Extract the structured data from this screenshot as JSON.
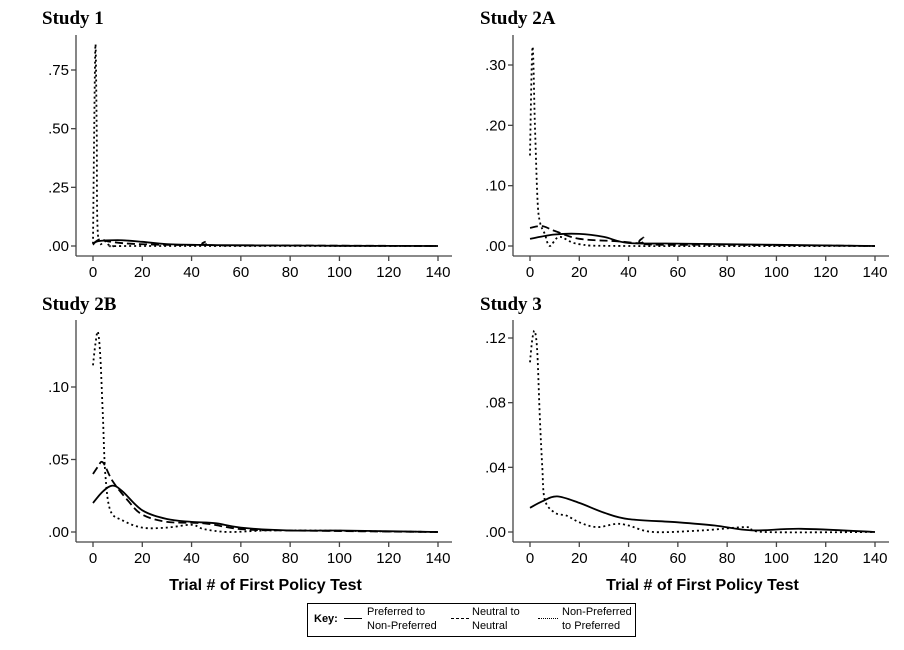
{
  "chart_data": [
    {
      "type": "line",
      "title": "Study 1",
      "xlabel": "",
      "xlim": [
        0,
        140
      ],
      "ylim": [
        0,
        0.88
      ],
      "xticks": [
        0,
        20,
        40,
        60,
        80,
        100,
        120,
        140
      ],
      "xtick_labels": [
        "0",
        "20",
        "40",
        "60",
        "80",
        "100",
        "120",
        "140"
      ],
      "yticks": [
        0,
        0.25,
        0.5,
        0.75
      ],
      "ytick_labels": [
        ".00",
        ".25",
        ".50",
        ".75"
      ],
      "series": [
        {
          "name": "Preferred to Non-Preferred",
          "style": "solid",
          "x": [
            0,
            2,
            10,
            20,
            30,
            50,
            80,
            100,
            140
          ],
          "y": [
            0.005,
            0.02,
            0.025,
            0.018,
            0.008,
            0.004,
            0.002,
            0.001,
            0
          ]
        },
        {
          "name": "Neutral to Neutral",
          "style": "dashed",
          "x": [
            0,
            3,
            6,
            15,
            30,
            45,
            46,
            47,
            80,
            140
          ],
          "y": [
            0.01,
            0.03,
            0.02,
            0.01,
            0.005,
            0.006,
            0.02,
            0.004,
            0.002,
            0
          ]
        },
        {
          "name": "Non-Preferred to Preferred",
          "style": "dotted",
          "x": [
            0,
            0.5,
            1,
            1.5,
            2,
            5,
            8,
            20,
            140
          ],
          "y": [
            0.01,
            0.5,
            0.86,
            0.5,
            0.05,
            0.02,
            0,
            0,
            0
          ]
        }
      ]
    },
    {
      "type": "line",
      "title": "Study 2A",
      "xlabel": "",
      "xlim": [
        0,
        140
      ],
      "ylim": [
        0,
        0.34
      ],
      "xticks": [
        0,
        20,
        40,
        60,
        80,
        100,
        120,
        140
      ],
      "xtick_labels": [
        "0",
        "20",
        "40",
        "60",
        "80",
        "100",
        "120",
        "140"
      ],
      "yticks": [
        0,
        0.1,
        0.2,
        0.3
      ],
      "ytick_labels": [
        ".00",
        ".10",
        ".20",
        ".30"
      ],
      "series": [
        {
          "name": "Preferred to Non-Preferred",
          "style": "solid",
          "x": [
            0,
            10,
            20,
            30,
            40,
            60,
            100,
            140
          ],
          "y": [
            0.012,
            0.019,
            0.02,
            0.015,
            0.005,
            0.004,
            0.002,
            0
          ]
        },
        {
          "name": "Neutral to Neutral",
          "style": "dashed",
          "x": [
            0,
            5,
            10,
            20,
            35,
            45,
            46,
            47,
            80,
            140
          ],
          "y": [
            0.03,
            0.033,
            0.025,
            0.012,
            0.008,
            0.005,
            0.014,
            0.003,
            0.002,
            0
          ]
        },
        {
          "name": "Non-Preferred to Preferred",
          "style": "dotted",
          "x": [
            0,
            1,
            2,
            3,
            4,
            6,
            8,
            12,
            20,
            40,
            140
          ],
          "y": [
            0.15,
            0.33,
            0.2,
            0.08,
            0.04,
            0.02,
            0,
            0.015,
            0.003,
            0,
            0
          ]
        }
      ]
    },
    {
      "type": "line",
      "title": "Study 2B",
      "xlabel": "Trial # of First Policy Test",
      "xlim": [
        0,
        140
      ],
      "ylim": [
        0,
        0.14
      ],
      "xticks": [
        0,
        20,
        40,
        60,
        80,
        100,
        120,
        140
      ],
      "xtick_labels": [
        "0",
        "20",
        "40",
        "60",
        "80",
        "100",
        "120",
        "140"
      ],
      "yticks": [
        0,
        0.05,
        0.1
      ],
      "ytick_labels": [
        ".00",
        ".05",
        ".10"
      ],
      "series": [
        {
          "name": "Preferred to Non-Preferred",
          "style": "solid",
          "x": [
            0,
            4,
            8,
            12,
            20,
            30,
            40,
            50,
            60,
            80,
            100,
            140
          ],
          "y": [
            0.02,
            0.028,
            0.032,
            0.028,
            0.015,
            0.009,
            0.007,
            0.006,
            0.003,
            0.001,
            0.001,
            0
          ]
        },
        {
          "name": "Neutral to Neutral",
          "style": "dashed",
          "x": [
            0,
            2,
            4,
            8,
            14,
            20,
            30,
            45,
            60,
            80,
            140
          ],
          "y": [
            0.04,
            0.045,
            0.048,
            0.035,
            0.022,
            0.012,
            0.007,
            0.006,
            0.002,
            0.001,
            0
          ]
        },
        {
          "name": "Non-Preferred to Preferred",
          "style": "dotted",
          "x": [
            0,
            1,
            2,
            3,
            4,
            5,
            7,
            12,
            20,
            30,
            40,
            45,
            55,
            70,
            90,
            140
          ],
          "y": [
            0.115,
            0.13,
            0.138,
            0.12,
            0.08,
            0.04,
            0.015,
            0.008,
            0.003,
            0.003,
            0.005,
            0.002,
            0,
            0.001,
            0.001,
            0
          ]
        }
      ]
    },
    {
      "type": "line",
      "title": "Study 3",
      "xlabel": "Trial # of First Policy Test",
      "xlim": [
        0,
        140
      ],
      "ylim": [
        0,
        0.13
      ],
      "xticks": [
        0,
        20,
        40,
        60,
        80,
        100,
        120,
        140
      ],
      "xtick_labels": [
        "0",
        "20",
        "40",
        "60",
        "80",
        "100",
        "120",
        "140"
      ],
      "yticks": [
        0,
        0.04,
        0.08,
        0.12
      ],
      "ytick_labels": [
        ".00",
        ".04",
        ".08",
        ".12"
      ],
      "series": [
        {
          "name": "Preferred to Non-Preferred",
          "style": "solid",
          "x": [
            0,
            5,
            11,
            20,
            30,
            40,
            60,
            75,
            90,
            110,
            140
          ],
          "y": [
            0.015,
            0.019,
            0.022,
            0.018,
            0.012,
            0.008,
            0.006,
            0.004,
            0.001,
            0.002,
            0
          ]
        },
        {
          "name": "Non-Preferred to Preferred",
          "style": "dotted",
          "x": [
            0,
            1,
            2,
            3,
            4,
            5,
            6,
            10,
            15,
            20,
            27,
            35,
            40,
            50,
            70,
            88,
            95,
            140
          ],
          "y": [
            0.105,
            0.12,
            0.124,
            0.11,
            0.07,
            0.04,
            0.02,
            0.012,
            0.01,
            0.006,
            0.003,
            0.005,
            0.004,
            0,
            0.001,
            0.003,
            0,
            0
          ]
        }
      ]
    }
  ],
  "legend": {
    "title": "Key:",
    "items": [
      {
        "label_line1": "Preferred to",
        "label_line2": "Non-Preferred",
        "style": "solid"
      },
      {
        "label_line1": "Neutral to",
        "label_line2": "Neutral",
        "style": "dashed"
      },
      {
        "label_line1": "Non-Preferred",
        "label_line2": "to Preferred",
        "style": "dotted"
      }
    ]
  }
}
